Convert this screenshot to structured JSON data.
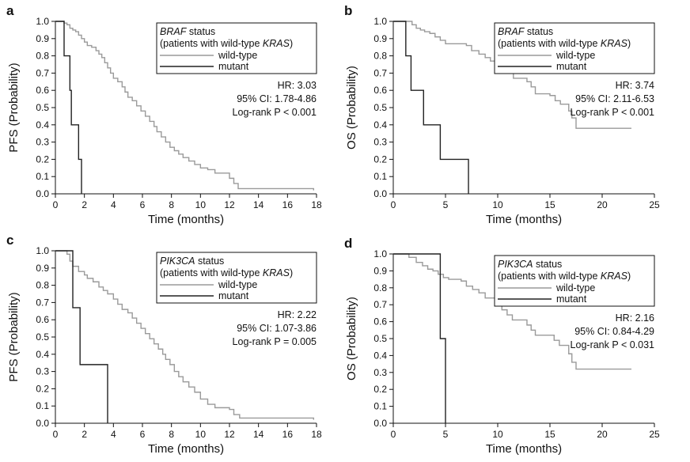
{
  "chart_data": [
    {
      "type": "line",
      "panel": "a",
      "xlabel": "Time (months)",
      "ylabel": "PFS (Probability)",
      "xlim": [
        0,
        18
      ],
      "xticks": [
        0,
        2,
        4,
        6,
        8,
        10,
        12,
        14,
        16,
        18
      ],
      "ylim": [
        0,
        1
      ],
      "yticks": [
        "0.0",
        "0.1",
        "0.2",
        "0.3",
        "0.4",
        "0.5",
        "0.6",
        "0.7",
        "0.8",
        "0.9",
        "1.0"
      ],
      "legend": {
        "title_gene": "BRAF",
        "title_rest": " status",
        "subtitle_pre": "(patients with wild-type ",
        "subtitle_gene": "KRAS",
        "subtitle_post": ")",
        "entries": [
          "wild-type",
          "mutant"
        ]
      },
      "stats": [
        "HR: 3.03",
        "95% CI: 1.78-4.86",
        "Log-rank P < 0.001"
      ],
      "series": [
        {
          "name": "wild-type",
          "color": "#9a9a9a",
          "points": [
            [
              0,
              1.0
            ],
            [
              0.6,
              0.99
            ],
            [
              0.8,
              0.98
            ],
            [
              1.0,
              0.96
            ],
            [
              1.2,
              0.95
            ],
            [
              1.4,
              0.94
            ],
            [
              1.6,
              0.92
            ],
            [
              1.8,
              0.9
            ],
            [
              2.0,
              0.88
            ],
            [
              2.2,
              0.86
            ],
            [
              2.5,
              0.85
            ],
            [
              2.8,
              0.83
            ],
            [
              3.0,
              0.81
            ],
            [
              3.2,
              0.79
            ],
            [
              3.4,
              0.76
            ],
            [
              3.6,
              0.73
            ],
            [
              3.8,
              0.7
            ],
            [
              4.0,
              0.67
            ],
            [
              4.3,
              0.65
            ],
            [
              4.6,
              0.62
            ],
            [
              4.8,
              0.59
            ],
            [
              5.0,
              0.56
            ],
            [
              5.3,
              0.54
            ],
            [
              5.6,
              0.51
            ],
            [
              5.9,
              0.48
            ],
            [
              6.2,
              0.45
            ],
            [
              6.5,
              0.42
            ],
            [
              6.8,
              0.39
            ],
            [
              7.0,
              0.36
            ],
            [
              7.3,
              0.33
            ],
            [
              7.6,
              0.3
            ],
            [
              7.9,
              0.27
            ],
            [
              8.2,
              0.25
            ],
            [
              8.5,
              0.23
            ],
            [
              8.8,
              0.21
            ],
            [
              9.2,
              0.19
            ],
            [
              9.6,
              0.17
            ],
            [
              10.0,
              0.15
            ],
            [
              10.5,
              0.14
            ],
            [
              11.0,
              0.12
            ],
            [
              11.5,
              0.12
            ],
            [
              12.0,
              0.09
            ],
            [
              12.3,
              0.06
            ],
            [
              12.6,
              0.03
            ],
            [
              17.8,
              0.02
            ]
          ]
        },
        {
          "name": "mutant",
          "color": "#222222",
          "points": [
            [
              0,
              1.0
            ],
            [
              0.6,
              0.8
            ],
            [
              1.0,
              0.6
            ],
            [
              1.1,
              0.4
            ],
            [
              1.6,
              0.2
            ],
            [
              1.8,
              0.0
            ]
          ]
        }
      ]
    },
    {
      "type": "line",
      "panel": "b",
      "xlabel": "Time (months)",
      "ylabel": "OS (Probability)",
      "xlim": [
        0,
        25
      ],
      "xticks": [
        0,
        5,
        10,
        15,
        20,
        25
      ],
      "ylim": [
        0,
        1
      ],
      "yticks": [
        "0.0",
        "0.1",
        "0.2",
        "0.3",
        "0.4",
        "0.5",
        "0.6",
        "0.7",
        "0.8",
        "0.9",
        "1.0"
      ],
      "legend": {
        "title_gene": "BRAF",
        "title_rest": " status",
        "subtitle_pre": "(patients with wild-type ",
        "subtitle_gene": "KRAS",
        "subtitle_post": ")",
        "entries": [
          "wild-type",
          "mutant"
        ]
      },
      "stats": [
        "HR: 3.74",
        "95% CI: 2.11-6.53",
        "Log-rank P < 0.001"
      ],
      "series": [
        {
          "name": "wild-type",
          "color": "#9a9a9a",
          "points": [
            [
              0,
              1.0
            ],
            [
              1.8,
              0.98
            ],
            [
              2.2,
              0.96
            ],
            [
              2.6,
              0.95
            ],
            [
              3.0,
              0.94
            ],
            [
              3.5,
              0.93
            ],
            [
              4.0,
              0.91
            ],
            [
              4.5,
              0.89
            ],
            [
              5.0,
              0.87
            ],
            [
              7.0,
              0.86
            ],
            [
              7.5,
              0.83
            ],
            [
              8.2,
              0.81
            ],
            [
              8.8,
              0.79
            ],
            [
              9.3,
              0.77
            ],
            [
              9.8,
              0.74
            ],
            [
              10.3,
              0.72
            ],
            [
              10.8,
              0.7
            ],
            [
              11.5,
              0.67
            ],
            [
              12.8,
              0.65
            ],
            [
              13.2,
              0.62
            ],
            [
              13.6,
              0.58
            ],
            [
              15.0,
              0.57
            ],
            [
              15.5,
              0.54
            ],
            [
              16.0,
              0.52
            ],
            [
              16.8,
              0.48
            ],
            [
              17.1,
              0.44
            ],
            [
              17.5,
              0.38
            ],
            [
              22.8,
              0.38
            ]
          ]
        },
        {
          "name": "mutant",
          "color": "#222222",
          "points": [
            [
              0,
              1.0
            ],
            [
              1.2,
              0.8
            ],
            [
              1.7,
              0.6
            ],
            [
              2.9,
              0.4
            ],
            [
              4.5,
              0.2
            ],
            [
              7.2,
              0.0
            ]
          ]
        }
      ]
    },
    {
      "type": "line",
      "panel": "c",
      "xlabel": "Time (months)",
      "ylabel": "PFS (Probability)",
      "xlim": [
        0,
        18
      ],
      "xticks": [
        0,
        2,
        4,
        6,
        8,
        10,
        12,
        14,
        16,
        18
      ],
      "ylim": [
        0,
        1
      ],
      "yticks": [
        "0.0",
        "0.1",
        "0.2",
        "0.3",
        "0.4",
        "0.5",
        "0.6",
        "0.7",
        "0.8",
        "0.9",
        "1.0"
      ],
      "legend": {
        "title_gene": "PIK3CA",
        "title_rest": " status",
        "subtitle_pre": "(patients with wild-type ",
        "subtitle_gene": "KRAS",
        "subtitle_post": ")",
        "entries": [
          "wild-type",
          "mutant"
        ]
      },
      "stats": [
        "HR: 2.22",
        "95% CI: 1.07-3.86",
        "Log-rank P = 0.005"
      ],
      "series": [
        {
          "name": "wild-type",
          "color": "#9a9a9a",
          "points": [
            [
              0,
              1.0
            ],
            [
              0.8,
              0.98
            ],
            [
              1.0,
              0.94
            ],
            [
              1.2,
              0.91
            ],
            [
              1.6,
              0.88
            ],
            [
              2.0,
              0.86
            ],
            [
              2.2,
              0.84
            ],
            [
              2.6,
              0.82
            ],
            [
              3.0,
              0.79
            ],
            [
              3.3,
              0.77
            ],
            [
              3.6,
              0.75
            ],
            [
              4.0,
              0.72
            ],
            [
              4.3,
              0.69
            ],
            [
              4.6,
              0.66
            ],
            [
              5.0,
              0.64
            ],
            [
              5.3,
              0.61
            ],
            [
              5.6,
              0.58
            ],
            [
              5.9,
              0.55
            ],
            [
              6.2,
              0.52
            ],
            [
              6.5,
              0.49
            ],
            [
              6.8,
              0.46
            ],
            [
              7.1,
              0.43
            ],
            [
              7.4,
              0.4
            ],
            [
              7.6,
              0.37
            ],
            [
              7.9,
              0.34
            ],
            [
              8.2,
              0.3
            ],
            [
              8.5,
              0.27
            ],
            [
              8.8,
              0.24
            ],
            [
              9.2,
              0.21
            ],
            [
              9.6,
              0.18
            ],
            [
              10.0,
              0.14
            ],
            [
              10.5,
              0.11
            ],
            [
              11.0,
              0.09
            ],
            [
              12.0,
              0.08
            ],
            [
              12.3,
              0.05
            ],
            [
              12.7,
              0.03
            ],
            [
              17.8,
              0.02
            ]
          ]
        },
        {
          "name": "mutant",
          "color": "#222222",
          "points": [
            [
              0,
              1.0
            ],
            [
              1.2,
              0.67
            ],
            [
              1.7,
              0.34
            ],
            [
              3.6,
              0.0
            ]
          ]
        }
      ]
    },
    {
      "type": "line",
      "panel": "d",
      "xlabel": "Time (months)",
      "ylabel": "OS (Probability)",
      "xlim": [
        0,
        25
      ],
      "xticks": [
        0,
        5,
        10,
        15,
        20,
        25
      ],
      "ylim": [
        0,
        1
      ],
      "yticks": [
        "0.0",
        "0.1",
        "0.2",
        "0.3",
        "0.4",
        "0.5",
        "0.6",
        "0.7",
        "0.8",
        "0.9",
        "1.0"
      ],
      "legend": {
        "title_gene": "PIK3CA",
        "title_rest": " status",
        "subtitle_pre": "(patients with wild-type ",
        "subtitle_gene": "KRAS",
        "subtitle_post": ")",
        "entries": [
          "wild-type",
          "mutant"
        ]
      },
      "stats": [
        "HR: 2.16",
        "95% CI: 0.84-4.29",
        "Log-rank P < 0.031"
      ],
      "series": [
        {
          "name": "wild-type",
          "color": "#9a9a9a",
          "points": [
            [
              0,
              1.0
            ],
            [
              1.5,
              0.98
            ],
            [
              2.2,
              0.95
            ],
            [
              2.8,
              0.93
            ],
            [
              3.3,
              0.91
            ],
            [
              3.8,
              0.9
            ],
            [
              4.3,
              0.88
            ],
            [
              4.8,
              0.86
            ],
            [
              5.3,
              0.85
            ],
            [
              6.5,
              0.84
            ],
            [
              7.0,
              0.81
            ],
            [
              7.6,
              0.79
            ],
            [
              8.2,
              0.77
            ],
            [
              8.8,
              0.74
            ],
            [
              9.8,
              0.71
            ],
            [
              10.4,
              0.67
            ],
            [
              10.9,
              0.64
            ],
            [
              11.4,
              0.61
            ],
            [
              12.8,
              0.58
            ],
            [
              13.2,
              0.55
            ],
            [
              13.6,
              0.52
            ],
            [
              15.4,
              0.49
            ],
            [
              15.9,
              0.46
            ],
            [
              16.8,
              0.41
            ],
            [
              17.1,
              0.36
            ],
            [
              17.5,
              0.32
            ],
            [
              22.8,
              0.32
            ]
          ]
        },
        {
          "name": "mutant",
          "color": "#222222",
          "points": [
            [
              0,
              1.0
            ],
            [
              4.5,
              0.5
            ],
            [
              5.0,
              0.0
            ]
          ]
        }
      ]
    }
  ]
}
